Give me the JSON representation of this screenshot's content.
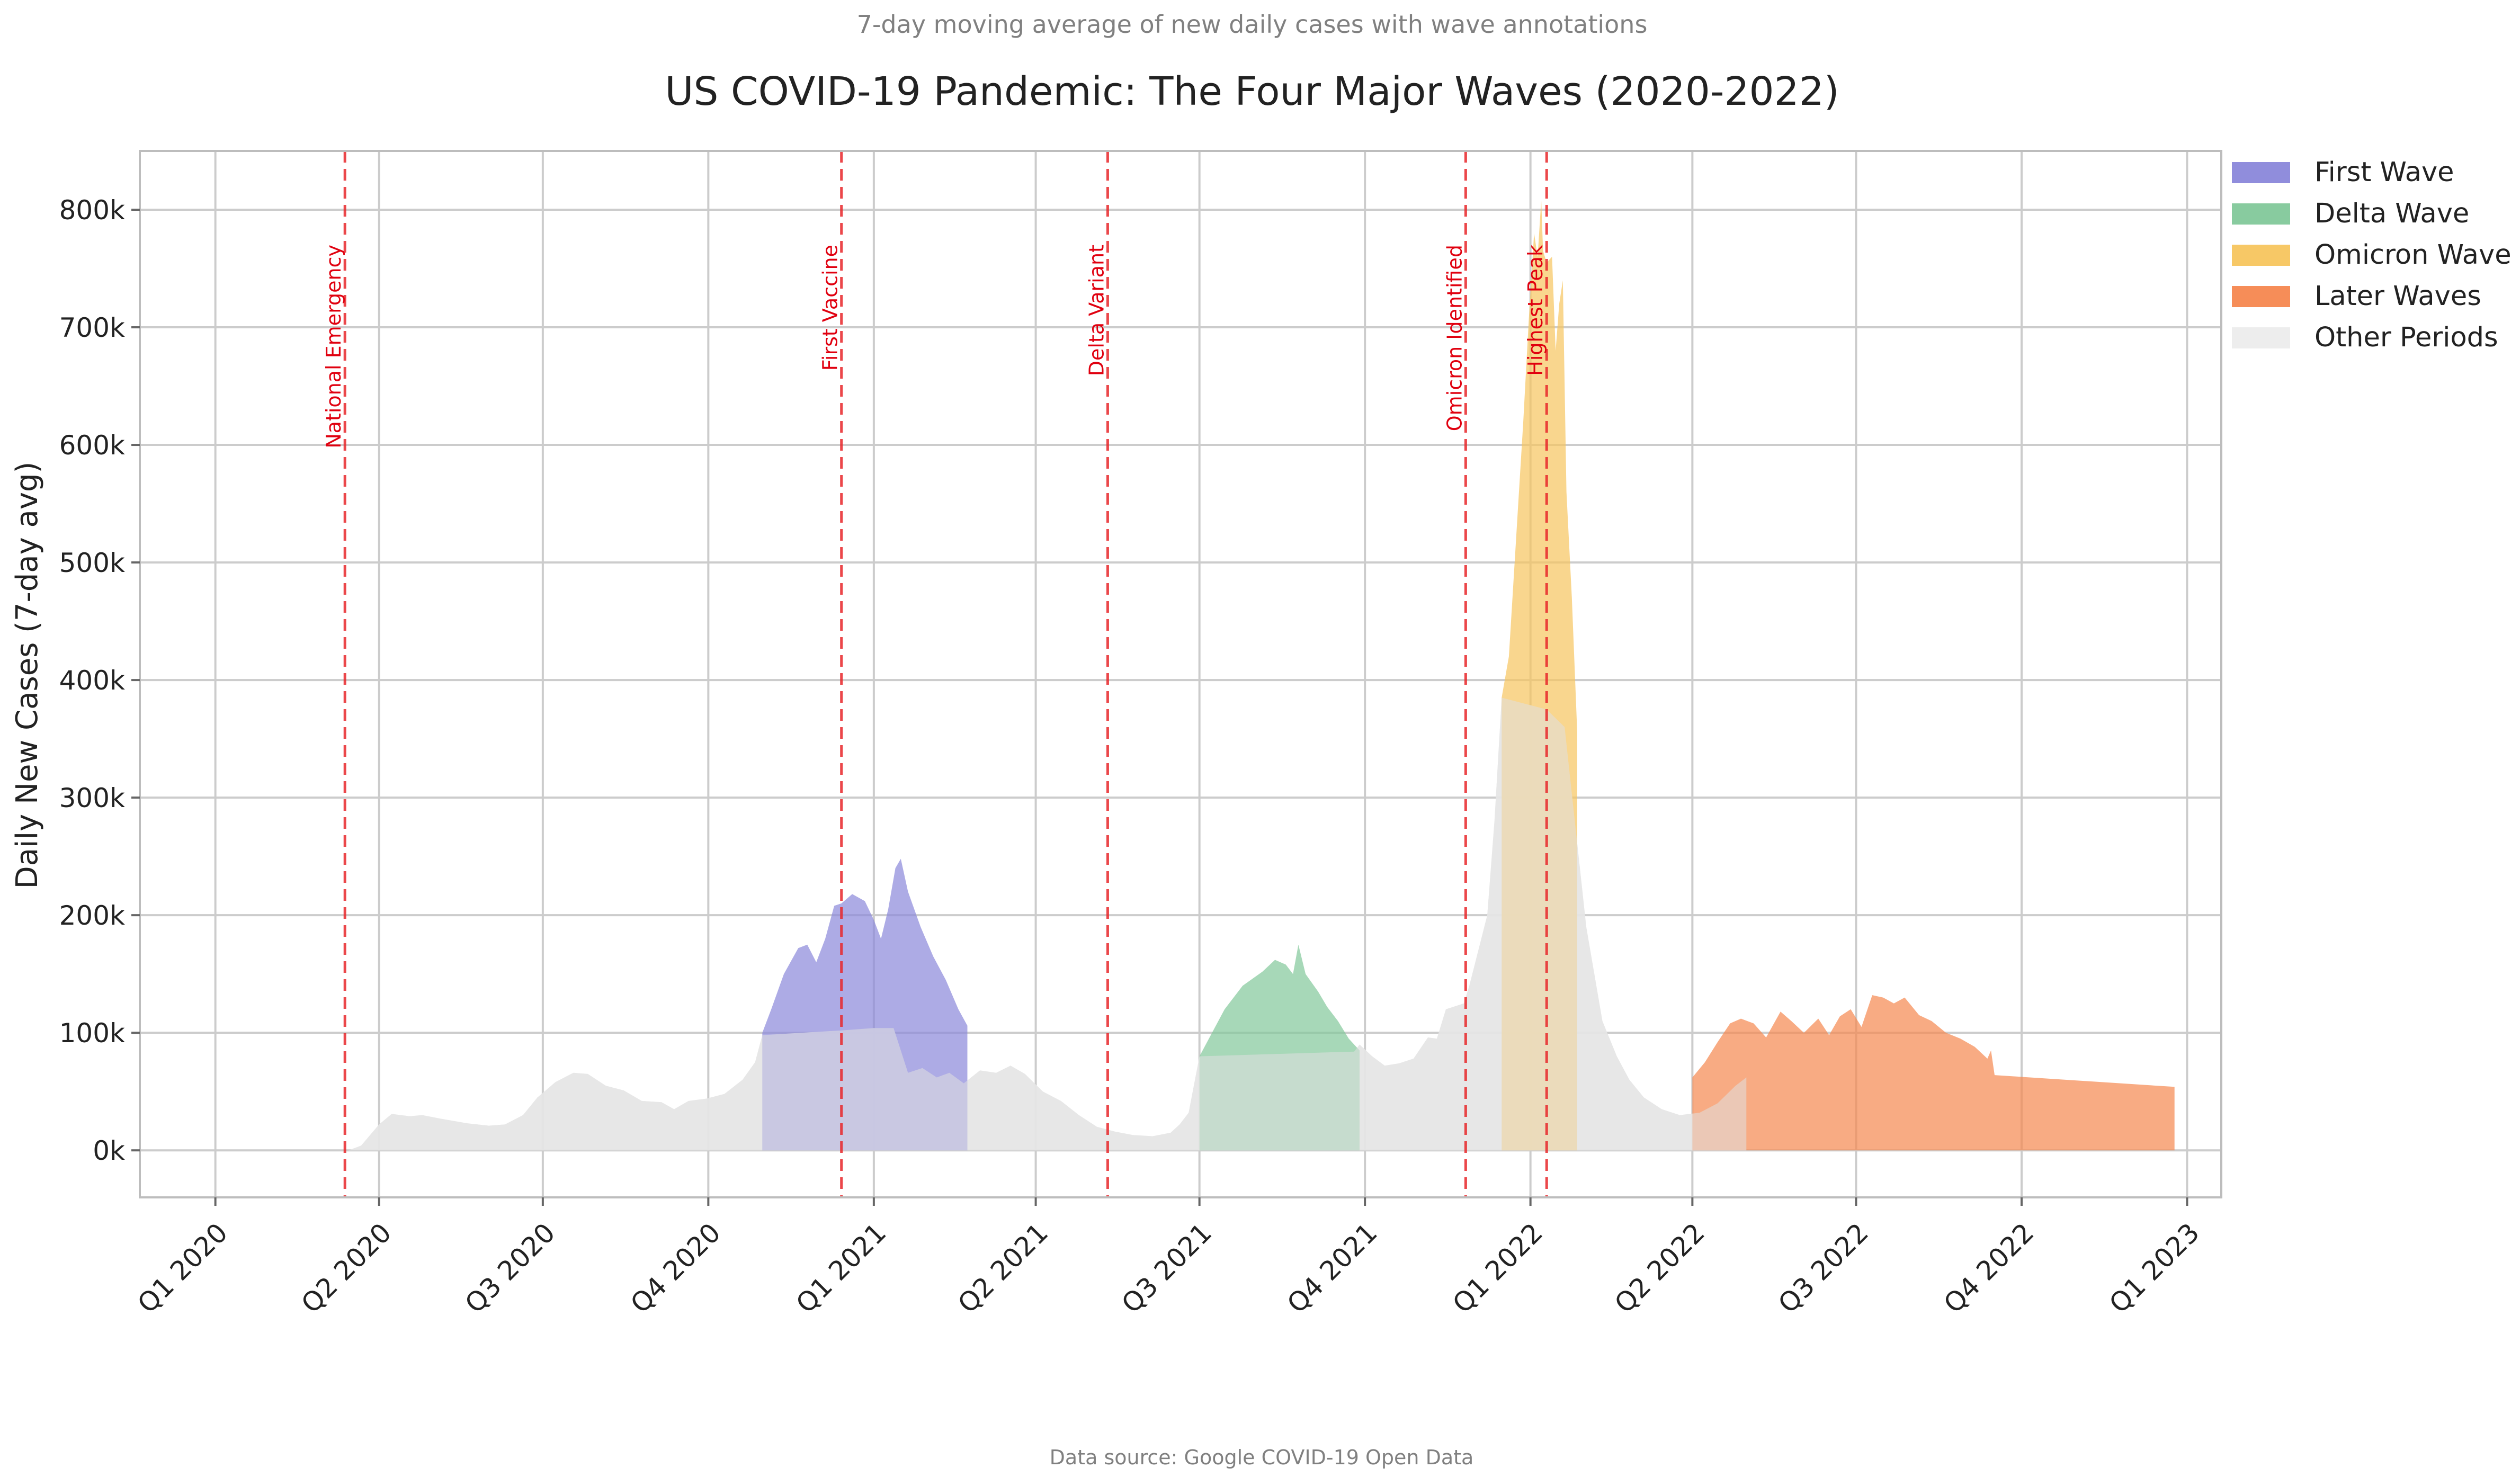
{
  "chart_data": {
    "type": "area",
    "subtitle": "7-day moving average of new daily cases with wave annotations",
    "title": "US COVID-19 Pandemic: The Four Major Waves (2020-2022)",
    "xlabel": "",
    "ylabel": "Daily New Cases (7-day avg)",
    "source": "Data source: Google COVID-19 Open Data",
    "x_type": "date",
    "xlim": [
      "2019-11-20",
      "2023-01-20"
    ],
    "ylim": [
      -40000,
      850000
    ],
    "grid": true,
    "legend_position": "outside-top-right",
    "x_ticks": [
      {
        "date": "2020-01-01",
        "label": "Q1 2020"
      },
      {
        "date": "2020-04-01",
        "label": "Q2 2020"
      },
      {
        "date": "2020-07-01",
        "label": "Q3 2020"
      },
      {
        "date": "2020-10-01",
        "label": "Q4 2020"
      },
      {
        "date": "2021-01-01",
        "label": "Q1 2021"
      },
      {
        "date": "2021-04-01",
        "label": "Q2 2021"
      },
      {
        "date": "2021-07-01",
        "label": "Q3 2021"
      },
      {
        "date": "2021-10-01",
        "label": "Q4 2021"
      },
      {
        "date": "2022-01-01",
        "label": "Q1 2022"
      },
      {
        "date": "2022-04-01",
        "label": "Q2 2022"
      },
      {
        "date": "2022-07-01",
        "label": "Q3 2022"
      },
      {
        "date": "2022-10-01",
        "label": "Q4 2022"
      },
      {
        "date": "2023-01-01",
        "label": "Q1 2023"
      }
    ],
    "y_ticks": [
      {
        "value": 0,
        "label": "0k"
      },
      {
        "value": 100000,
        "label": "100k"
      },
      {
        "value": 200000,
        "label": "200k"
      },
      {
        "value": 300000,
        "label": "300k"
      },
      {
        "value": 400000,
        "label": "400k"
      },
      {
        "value": 500000,
        "label": "500k"
      },
      {
        "value": 600000,
        "label": "600k"
      },
      {
        "value": 700000,
        "label": "700k"
      },
      {
        "value": 800000,
        "label": "800k"
      }
    ],
    "events": [
      {
        "date": "2020-03-13",
        "label": "National Emergency"
      },
      {
        "date": "2020-12-14",
        "label": "First Vaccine"
      },
      {
        "date": "2021-05-11",
        "label": "Delta Variant"
      },
      {
        "date": "2021-11-26",
        "label": "Omicron Identified"
      },
      {
        "date": "2022-01-10",
        "label": "Highest Peak"
      }
    ],
    "series": [
      {
        "name": "Other Periods",
        "color": "#e6e6e6",
        "points": [
          [
            "2020-03-15",
            0
          ],
          [
            "2020-03-22",
            4000
          ],
          [
            "2020-04-01",
            22000
          ],
          [
            "2020-04-08",
            31000
          ],
          [
            "2020-04-18",
            29000
          ],
          [
            "2020-04-25",
            30000
          ],
          [
            "2020-05-05",
            27000
          ],
          [
            "2020-05-20",
            23000
          ],
          [
            "2020-06-01",
            21000
          ],
          [
            "2020-06-10",
            22000
          ],
          [
            "2020-06-20",
            30000
          ],
          [
            "2020-06-28",
            45000
          ],
          [
            "2020-07-08",
            58000
          ],
          [
            "2020-07-18",
            66000
          ],
          [
            "2020-07-26",
            65000
          ],
          [
            "2020-08-05",
            55000
          ],
          [
            "2020-08-15",
            51000
          ],
          [
            "2020-08-25",
            42000
          ],
          [
            "2020-09-05",
            41000
          ],
          [
            "2020-09-12",
            35000
          ],
          [
            "2020-09-20",
            42000
          ],
          [
            "2020-09-30",
            44000
          ],
          [
            "2020-10-10",
            48000
          ],
          [
            "2020-10-20",
            60000
          ],
          [
            "2020-10-27",
            75000
          ],
          [
            "2020-10-31",
            98000
          ],
          [
            "2020-12-14",
            102000
          ],
          [
            "2021-01-01",
            104000
          ],
          [
            "2021-01-12",
            104000
          ],
          [
            "2021-01-20",
            66000
          ],
          [
            "2021-01-28",
            70000
          ],
          [
            "2021-02-05",
            62000
          ],
          [
            "2021-02-12",
            66000
          ],
          [
            "2021-02-20",
            57000
          ],
          [
            "2021-03-01",
            68000
          ],
          [
            "2021-03-10",
            66000
          ],
          [
            "2021-03-18",
            72000
          ],
          [
            "2021-03-26",
            65000
          ],
          [
            "2021-04-05",
            50000
          ],
          [
            "2021-04-15",
            42000
          ],
          [
            "2021-04-25",
            30000
          ],
          [
            "2021-05-05",
            20000
          ],
          [
            "2021-05-15",
            16000
          ],
          [
            "2021-05-25",
            13000
          ],
          [
            "2021-06-05",
            12000
          ],
          [
            "2021-06-15",
            15000
          ],
          [
            "2021-06-20",
            22000
          ],
          [
            "2021-06-25",
            32000
          ],
          [
            "2021-07-01",
            80000
          ],
          [
            "2021-09-25",
            84000
          ],
          [
            "2021-09-28",
            90000
          ],
          [
            "2021-10-05",
            80000
          ],
          [
            "2021-10-12",
            72000
          ],
          [
            "2021-10-20",
            74000
          ],
          [
            "2021-10-28",
            78000
          ],
          [
            "2021-11-05",
            96000
          ],
          [
            "2021-11-10",
            95000
          ],
          [
            "2021-11-15",
            120000
          ],
          [
            "2021-11-25",
            125000
          ],
          [
            "2021-11-28",
            140000
          ],
          [
            "2021-12-03",
            170000
          ],
          [
            "2021-12-08",
            200000
          ],
          [
            "2021-12-12",
            280000
          ],
          [
            "2021-12-16",
            385000
          ],
          [
            "2022-01-10",
            375000
          ],
          [
            "2022-01-20",
            360000
          ],
          [
            "2022-02-01",
            190000
          ],
          [
            "2022-02-10",
            110000
          ],
          [
            "2022-02-18",
            80000
          ],
          [
            "2022-02-25",
            60000
          ],
          [
            "2022-03-05",
            45000
          ],
          [
            "2022-03-15",
            35000
          ],
          [
            "2022-03-25",
            30000
          ],
          [
            "2022-04-05",
            32000
          ],
          [
            "2022-04-15",
            40000
          ],
          [
            "2022-04-25",
            55000
          ],
          [
            "2022-05-01",
            62000
          ],
          [
            "2022-05-01",
            0
          ]
        ]
      },
      {
        "name": "First Wave",
        "color": "#8a87da",
        "points": [
          [
            "2020-10-31",
            100000
          ],
          [
            "2020-11-05",
            120000
          ],
          [
            "2020-11-12",
            150000
          ],
          [
            "2020-11-20",
            172000
          ],
          [
            "2020-11-25",
            175000
          ],
          [
            "2020-11-30",
            160000
          ],
          [
            "2020-12-05",
            180000
          ],
          [
            "2020-12-10",
            208000
          ],
          [
            "2020-12-14",
            210000
          ],
          [
            "2020-12-20",
            218000
          ],
          [
            "2020-12-27",
            212000
          ],
          [
            "2021-01-01",
            196000
          ],
          [
            "2021-01-05",
            180000
          ],
          [
            "2021-01-09",
            205000
          ],
          [
            "2021-01-13",
            240000
          ],
          [
            "2021-01-16",
            248000
          ],
          [
            "2021-01-20",
            220000
          ],
          [
            "2021-01-27",
            190000
          ],
          [
            "2021-02-03",
            165000
          ],
          [
            "2021-02-10",
            145000
          ],
          [
            "2021-02-17",
            120000
          ],
          [
            "2021-02-22",
            106000
          ]
        ]
      },
      {
        "name": "Delta Wave",
        "color": "#82c89a",
        "points": [
          [
            "2021-07-01",
            80000
          ],
          [
            "2021-07-08",
            100000
          ],
          [
            "2021-07-15",
            120000
          ],
          [
            "2021-07-25",
            140000
          ],
          [
            "2021-08-05",
            152000
          ],
          [
            "2021-08-12",
            162000
          ],
          [
            "2021-08-18",
            158000
          ],
          [
            "2021-08-22",
            150000
          ],
          [
            "2021-08-25",
            175000
          ],
          [
            "2021-08-29",
            150000
          ],
          [
            "2021-09-05",
            135000
          ],
          [
            "2021-09-10",
            122000
          ],
          [
            "2021-09-16",
            110000
          ],
          [
            "2021-09-22",
            95000
          ],
          [
            "2021-09-28",
            85000
          ]
        ]
      },
      {
        "name": "Omicron Wave",
        "color": "#f7c55e",
        "points": [
          [
            "2021-12-16",
            385000
          ],
          [
            "2021-12-20",
            420000
          ],
          [
            "2021-12-24",
            520000
          ],
          [
            "2021-12-28",
            620000
          ],
          [
            "2021-12-31",
            705000
          ],
          [
            "2022-01-03",
            780000
          ],
          [
            "2022-01-05",
            760000
          ],
          [
            "2022-01-07",
            808000
          ],
          [
            "2022-01-08",
            765000
          ],
          [
            "2022-01-10",
            755000
          ],
          [
            "2022-01-13",
            760000
          ],
          [
            "2022-01-15",
            680000
          ],
          [
            "2022-01-17",
            720000
          ],
          [
            "2022-01-19",
            740000
          ],
          [
            "2022-01-21",
            560000
          ],
          [
            "2022-01-24",
            470000
          ],
          [
            "2022-01-27",
            355000
          ]
        ]
      },
      {
        "name": "Later Waves",
        "color": "#f5874f",
        "points": [
          [
            "2022-04-01",
            62000
          ],
          [
            "2022-04-08",
            75000
          ],
          [
            "2022-04-15",
            92000
          ],
          [
            "2022-04-22",
            108000
          ],
          [
            "2022-04-28",
            112000
          ],
          [
            "2022-05-05",
            108000
          ],
          [
            "2022-05-12",
            96000
          ],
          [
            "2022-05-20",
            118000
          ],
          [
            "2022-05-26",
            110000
          ],
          [
            "2022-06-02",
            100000
          ],
          [
            "2022-06-10",
            112000
          ],
          [
            "2022-06-16",
            98000
          ],
          [
            "2022-06-22",
            114000
          ],
          [
            "2022-06-28",
            120000
          ],
          [
            "2022-07-04",
            105000
          ],
          [
            "2022-07-10",
            132000
          ],
          [
            "2022-07-16",
            130000
          ],
          [
            "2022-07-22",
            125000
          ],
          [
            "2022-07-28",
            130000
          ],
          [
            "2022-08-05",
            115000
          ],
          [
            "2022-08-12",
            110000
          ],
          [
            "2022-08-20",
            100000
          ],
          [
            "2022-08-28",
            95000
          ],
          [
            "2022-09-05",
            88000
          ],
          [
            "2022-09-12",
            78000
          ],
          [
            "2022-09-14",
            85000
          ],
          [
            "2022-09-16",
            64000
          ],
          [
            "2022-12-25",
            54000
          ]
        ]
      }
    ],
    "legend_order": [
      "First Wave",
      "Delta Wave",
      "Omicron Wave",
      "Later Waves",
      "Other Periods"
    ]
  }
}
